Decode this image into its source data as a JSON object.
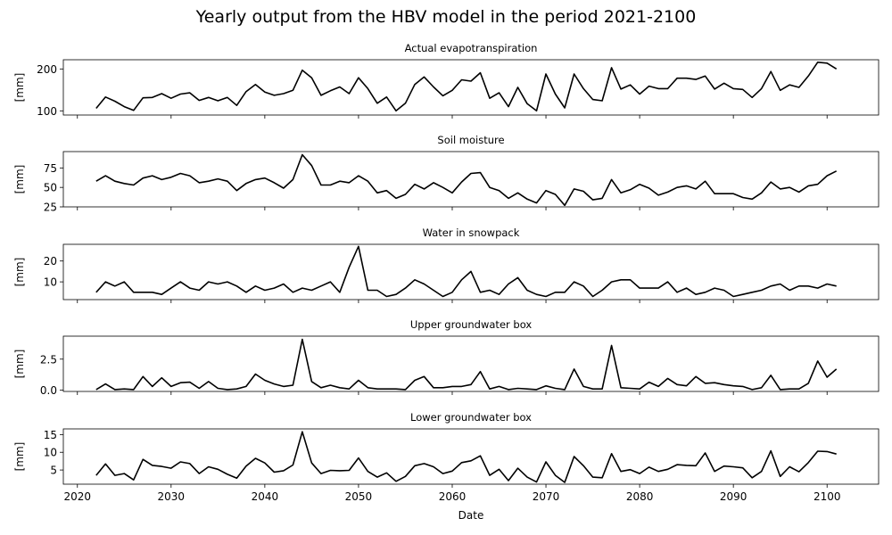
{
  "figure": {
    "title": "Yearly output from the HBV model in the period 2021-2100"
  },
  "chart_data": {
    "type": "line",
    "x_label": "Date",
    "x_range": [
      2018.5,
      2105.5
    ],
    "x_ticks": [
      2020,
      2030,
      2040,
      2050,
      2060,
      2070,
      2080,
      2090,
      2100
    ],
    "x": [
      2022,
      2023,
      2024,
      2025,
      2026,
      2027,
      2028,
      2029,
      2030,
      2031,
      2032,
      2033,
      2034,
      2035,
      2036,
      2037,
      2038,
      2039,
      2040,
      2041,
      2042,
      2043,
      2044,
      2045,
      2046,
      2047,
      2048,
      2049,
      2050,
      2051,
      2052,
      2053,
      2054,
      2055,
      2056,
      2057,
      2058,
      2059,
      2060,
      2061,
      2062,
      2063,
      2064,
      2065,
      2066,
      2067,
      2068,
      2069,
      2070,
      2071,
      2072,
      2073,
      2074,
      2075,
      2076,
      2077,
      2078,
      2079,
      2080,
      2081,
      2082,
      2083,
      2084,
      2085,
      2086,
      2087,
      2088,
      2089,
      2090,
      2091,
      2092,
      2093,
      2094,
      2095,
      2096,
      2097,
      2098,
      2099,
      2100,
      2101
    ],
    "line_color": "#000000",
    "panels": [
      {
        "title": "Actual evapotranspiration",
        "ylabel": "[mm]",
        "ylim": [
          90,
          222
        ],
        "yticks": [
          100,
          200
        ],
        "values": [
          106,
          133,
          123,
          110,
          101,
          131,
          132,
          141,
          130,
          140,
          143,
          125,
          132,
          124,
          132,
          113,
          146,
          163,
          145,
          137,
          141,
          149,
          197,
          179,
          137,
          148,
          157,
          141,
          179,
          153,
          118,
          133,
          100,
          118,
          163,
          181,
          157,
          136,
          149,
          174,
          171,
          191,
          130,
          143,
          110,
          156,
          117,
          100,
          188,
          140,
          107,
          188,
          153,
          127,
          124,
          203,
          152,
          162,
          140,
          159,
          153,
          153,
          178,
          178,
          175,
          183,
          152,
          166,
          153,
          151,
          132,
          153,
          194,
          149,
          162,
          156,
          183,
          216,
          214,
          200
        ]
      },
      {
        "title": "Soil moisture",
        "ylabel": "[mm]",
        "ylim": [
          25,
          96
        ],
        "yticks": [
          25,
          50,
          75
        ],
        "values": [
          58,
          65,
          58,
          55,
          53,
          62,
          65,
          60,
          63,
          68,
          65,
          56,
          58,
          61,
          58,
          46,
          55,
          60,
          62,
          56,
          49,
          60,
          92,
          78,
          53,
          53,
          58,
          56,
          65,
          58,
          43,
          46,
          36,
          41,
          54,
          48,
          56,
          50,
          43,
          57,
          68,
          69,
          50,
          46,
          36,
          43,
          35,
          30,
          46,
          41,
          27,
          48,
          45,
          34,
          36,
          60,
          43,
          47,
          54,
          49,
          40,
          44,
          50,
          52,
          48,
          58,
          42,
          42,
          42,
          37,
          35,
          43,
          57,
          48,
          50,
          44,
          52,
          54,
          65,
          71
        ]
      },
      {
        "title": "Water in snowpack",
        "ylabel": "[mm]",
        "ylim": [
          1.5,
          28
        ],
        "yticks": [
          10,
          20
        ],
        "values": [
          5,
          10,
          8,
          10,
          5,
          5,
          5,
          4,
          7,
          10,
          7,
          6,
          10,
          9,
          10,
          8,
          5,
          8,
          6,
          7,
          9,
          5,
          7,
          6,
          8,
          10,
          5,
          17,
          27,
          6,
          6,
          3,
          4,
          7,
          11,
          9,
          6,
          3,
          5,
          11,
          15,
          5,
          6,
          4,
          9,
          12,
          6,
          4,
          3,
          5,
          5,
          10,
          8,
          3,
          6,
          10,
          11,
          11,
          7,
          7,
          7,
          10,
          5,
          7,
          4,
          5,
          7,
          6,
          3,
          4,
          5,
          6,
          8,
          9,
          6,
          8,
          8,
          7,
          9,
          8
        ]
      },
      {
        "title": "Upper groundwater box",
        "ylabel": "[mm]",
        "ylim": [
          -0.1,
          4.35
        ],
        "yticks": [
          0.0,
          2.5
        ],
        "ytick_labels": [
          "0.0",
          "2.5"
        ],
        "values": [
          0.05,
          0.5,
          0.05,
          0.1,
          0.05,
          1.1,
          0.3,
          1.0,
          0.3,
          0.6,
          0.65,
          0.15,
          0.7,
          0.15,
          0.05,
          0.1,
          0.3,
          1.3,
          0.8,
          0.5,
          0.3,
          0.4,
          4.1,
          0.7,
          0.2,
          0.4,
          0.2,
          0.1,
          0.8,
          0.2,
          0.1,
          0.1,
          0.1,
          0.05,
          0.8,
          1.1,
          0.2,
          0.2,
          0.3,
          0.3,
          0.45,
          1.5,
          0.1,
          0.3,
          0.05,
          0.15,
          0.1,
          0.05,
          0.35,
          0.15,
          0.05,
          1.7,
          0.3,
          0.1,
          0.1,
          3.6,
          0.2,
          0.15,
          0.1,
          0.65,
          0.3,
          0.95,
          0.45,
          0.35,
          1.1,
          0.55,
          0.6,
          0.45,
          0.35,
          0.3,
          0.05,
          0.2,
          1.2,
          0.05,
          0.1,
          0.1,
          0.55,
          2.35,
          1.05,
          1.7
        ]
      },
      {
        "title": "Lower groundwater box",
        "ylabel": "[mm]",
        "ylim": [
          1.0,
          16.6
        ],
        "yticks": [
          5,
          10,
          15
        ],
        "values": [
          3.5,
          6.7,
          3.5,
          4.0,
          2.2,
          8.0,
          6.3,
          6.0,
          5.5,
          7.3,
          6.8,
          4.0,
          5.9,
          5.2,
          3.8,
          2.7,
          6.1,
          8.3,
          7.0,
          4.4,
          4.8,
          6.4,
          15.8,
          7.0,
          4.0,
          4.9,
          4.8,
          4.9,
          8.4,
          4.6,
          3.0,
          4.2,
          1.8,
          3.2,
          6.2,
          6.8,
          5.9,
          4.0,
          4.7,
          7.1,
          7.6,
          9.0,
          3.5,
          5.2,
          2.0,
          5.5,
          3.0,
          1.6,
          7.3,
          3.5,
          1.5,
          8.8,
          6.2,
          3.0,
          2.8,
          9.6,
          4.6,
          5.1,
          4.0,
          5.8,
          4.6,
          5.2,
          6.5,
          6.3,
          6.2,
          9.8,
          4.6,
          6.1,
          5.9,
          5.6,
          2.8,
          4.6,
          10.4,
          3.2,
          5.9,
          4.5,
          7.1,
          10.3,
          10.2,
          9.5
        ]
      }
    ]
  }
}
